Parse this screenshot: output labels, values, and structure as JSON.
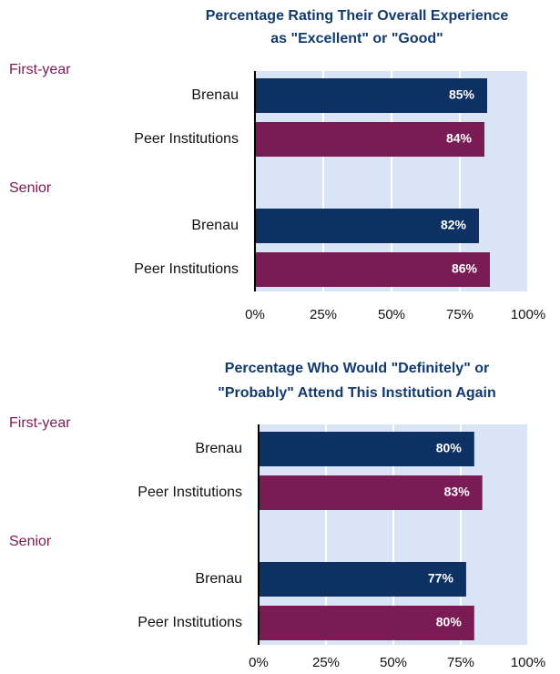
{
  "chart_data": [
    {
      "type": "bar",
      "title": [
        "Percentage Rating Their Overall Experience",
        "as \"Excellent\" or \"Good\""
      ],
      "groups": [
        {
          "name": "First-year",
          "categories": [
            "Brenau",
            "Peer Institutions"
          ],
          "values": [
            85,
            84
          ],
          "value_labels": [
            "85%",
            "84%"
          ]
        },
        {
          "name": "Senior",
          "categories": [
            "Brenau",
            "Peer Institutions"
          ],
          "values": [
            82,
            86
          ],
          "value_labels": [
            "82%",
            "86%"
          ]
        }
      ],
      "colors": [
        "#0d3163",
        "#7b1b55"
      ],
      "xlim": [
        0,
        100
      ],
      "xticks": [
        {
          "value": 0,
          "label": "0%"
        },
        {
          "value": 25,
          "label": "25%"
        },
        {
          "value": 50,
          "label": "50%"
        },
        {
          "value": 75,
          "label": "75%"
        },
        {
          "value": 100,
          "label": "100%"
        }
      ],
      "grid": true
    },
    {
      "type": "bar",
      "title": [
        "Percentage Who Would \"Definitely\" or",
        "\"Probably\" Attend This Institution Again"
      ],
      "groups": [
        {
          "name": "First-year",
          "categories": [
            "Brenau",
            "Peer Institutions"
          ],
          "values": [
            80,
            83
          ],
          "value_labels": [
            "80%",
            "83%"
          ]
        },
        {
          "name": "Senior",
          "categories": [
            "Brenau",
            "Peer Institutions"
          ],
          "values": [
            77,
            80
          ],
          "value_labels": [
            "77%",
            "80%"
          ]
        }
      ],
      "colors": [
        "#0d3163",
        "#7b1b55"
      ],
      "xlim": [
        0,
        100
      ],
      "xticks": [
        {
          "value": 0,
          "label": "0%"
        },
        {
          "value": 25,
          "label": "25%"
        },
        {
          "value": 50,
          "label": "50%"
        },
        {
          "value": 75,
          "label": "75%"
        },
        {
          "value": 100,
          "label": "100%"
        }
      ],
      "grid": true
    }
  ]
}
